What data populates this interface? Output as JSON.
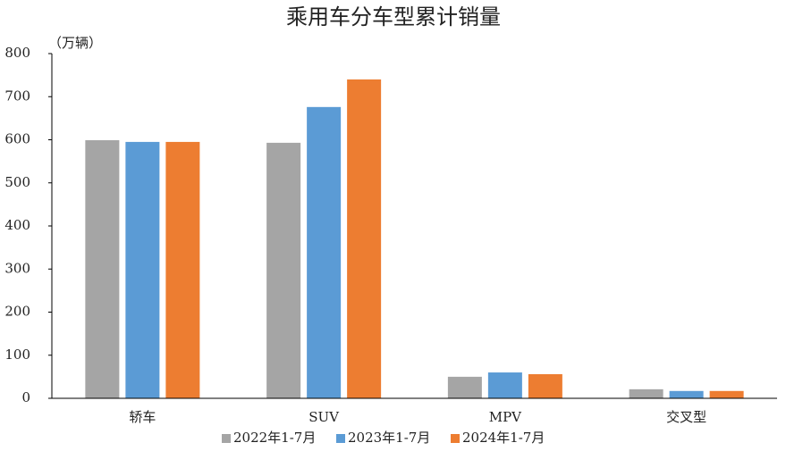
{
  "chart_data": {
    "type": "bar",
    "title": "乘用车分车型累计销量",
    "ylabel": "（万辆）",
    "categories": [
      "轿车",
      "SUV",
      "MPV",
      "交叉型"
    ],
    "series": [
      {
        "name": "2022年1-7月",
        "color": "#a5a5a5",
        "values": [
          599,
          593,
          50,
          21
        ]
      },
      {
        "name": "2023年1-7月",
        "color": "#5b9bd5",
        "values": [
          595,
          676,
          60,
          17
        ]
      },
      {
        "name": "2024年1-7月",
        "color": "#ed7d31",
        "values": [
          595,
          740,
          56,
          17
        ]
      }
    ],
    "ylim": [
      0,
      800
    ],
    "yticks": [
      0,
      100,
      200,
      300,
      400,
      500,
      600,
      700,
      800
    ],
    "grid": false,
    "legend": "bottom"
  }
}
